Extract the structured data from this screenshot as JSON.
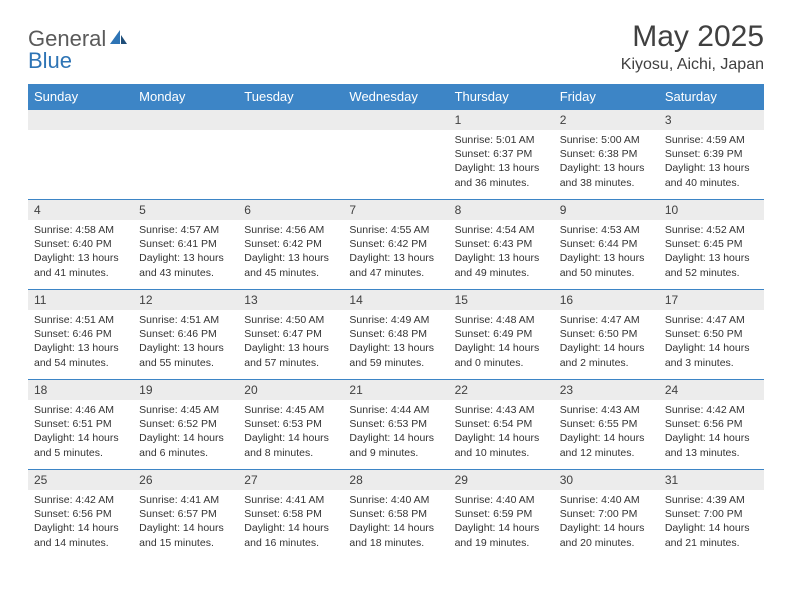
{
  "logo": {
    "text1": "General",
    "text2": "Blue"
  },
  "title": "May 2025",
  "location": "Kiyosu, Aichi, Japan",
  "headers": [
    "Sunday",
    "Monday",
    "Tuesday",
    "Wednesday",
    "Thursday",
    "Friday",
    "Saturday"
  ],
  "colors": {
    "header_bg": "#3d85c6",
    "header_fg": "#ffffff",
    "daynum_bg": "#ececec",
    "border": "#3d85c6",
    "title_color": "#404040",
    "logo_gray": "#5a5a5a",
    "logo_blue": "#2e74b5"
  },
  "weeks": [
    [
      {
        "n": "",
        "sr": "",
        "ss": "",
        "dl": ""
      },
      {
        "n": "",
        "sr": "",
        "ss": "",
        "dl": ""
      },
      {
        "n": "",
        "sr": "",
        "ss": "",
        "dl": ""
      },
      {
        "n": "",
        "sr": "",
        "ss": "",
        "dl": ""
      },
      {
        "n": "1",
        "sr": "Sunrise: 5:01 AM",
        "ss": "Sunset: 6:37 PM",
        "dl": "Daylight: 13 hours and 36 minutes."
      },
      {
        "n": "2",
        "sr": "Sunrise: 5:00 AM",
        "ss": "Sunset: 6:38 PM",
        "dl": "Daylight: 13 hours and 38 minutes."
      },
      {
        "n": "3",
        "sr": "Sunrise: 4:59 AM",
        "ss": "Sunset: 6:39 PM",
        "dl": "Daylight: 13 hours and 40 minutes."
      }
    ],
    [
      {
        "n": "4",
        "sr": "Sunrise: 4:58 AM",
        "ss": "Sunset: 6:40 PM",
        "dl": "Daylight: 13 hours and 41 minutes."
      },
      {
        "n": "5",
        "sr": "Sunrise: 4:57 AM",
        "ss": "Sunset: 6:41 PM",
        "dl": "Daylight: 13 hours and 43 minutes."
      },
      {
        "n": "6",
        "sr": "Sunrise: 4:56 AM",
        "ss": "Sunset: 6:42 PM",
        "dl": "Daylight: 13 hours and 45 minutes."
      },
      {
        "n": "7",
        "sr": "Sunrise: 4:55 AM",
        "ss": "Sunset: 6:42 PM",
        "dl": "Daylight: 13 hours and 47 minutes."
      },
      {
        "n": "8",
        "sr": "Sunrise: 4:54 AM",
        "ss": "Sunset: 6:43 PM",
        "dl": "Daylight: 13 hours and 49 minutes."
      },
      {
        "n": "9",
        "sr": "Sunrise: 4:53 AM",
        "ss": "Sunset: 6:44 PM",
        "dl": "Daylight: 13 hours and 50 minutes."
      },
      {
        "n": "10",
        "sr": "Sunrise: 4:52 AM",
        "ss": "Sunset: 6:45 PM",
        "dl": "Daylight: 13 hours and 52 minutes."
      }
    ],
    [
      {
        "n": "11",
        "sr": "Sunrise: 4:51 AM",
        "ss": "Sunset: 6:46 PM",
        "dl": "Daylight: 13 hours and 54 minutes."
      },
      {
        "n": "12",
        "sr": "Sunrise: 4:51 AM",
        "ss": "Sunset: 6:46 PM",
        "dl": "Daylight: 13 hours and 55 minutes."
      },
      {
        "n": "13",
        "sr": "Sunrise: 4:50 AM",
        "ss": "Sunset: 6:47 PM",
        "dl": "Daylight: 13 hours and 57 minutes."
      },
      {
        "n": "14",
        "sr": "Sunrise: 4:49 AM",
        "ss": "Sunset: 6:48 PM",
        "dl": "Daylight: 13 hours and 59 minutes."
      },
      {
        "n": "15",
        "sr": "Sunrise: 4:48 AM",
        "ss": "Sunset: 6:49 PM",
        "dl": "Daylight: 14 hours and 0 minutes."
      },
      {
        "n": "16",
        "sr": "Sunrise: 4:47 AM",
        "ss": "Sunset: 6:50 PM",
        "dl": "Daylight: 14 hours and 2 minutes."
      },
      {
        "n": "17",
        "sr": "Sunrise: 4:47 AM",
        "ss": "Sunset: 6:50 PM",
        "dl": "Daylight: 14 hours and 3 minutes."
      }
    ],
    [
      {
        "n": "18",
        "sr": "Sunrise: 4:46 AM",
        "ss": "Sunset: 6:51 PM",
        "dl": "Daylight: 14 hours and 5 minutes."
      },
      {
        "n": "19",
        "sr": "Sunrise: 4:45 AM",
        "ss": "Sunset: 6:52 PM",
        "dl": "Daylight: 14 hours and 6 minutes."
      },
      {
        "n": "20",
        "sr": "Sunrise: 4:45 AM",
        "ss": "Sunset: 6:53 PM",
        "dl": "Daylight: 14 hours and 8 minutes."
      },
      {
        "n": "21",
        "sr": "Sunrise: 4:44 AM",
        "ss": "Sunset: 6:53 PM",
        "dl": "Daylight: 14 hours and 9 minutes."
      },
      {
        "n": "22",
        "sr": "Sunrise: 4:43 AM",
        "ss": "Sunset: 6:54 PM",
        "dl": "Daylight: 14 hours and 10 minutes."
      },
      {
        "n": "23",
        "sr": "Sunrise: 4:43 AM",
        "ss": "Sunset: 6:55 PM",
        "dl": "Daylight: 14 hours and 12 minutes."
      },
      {
        "n": "24",
        "sr": "Sunrise: 4:42 AM",
        "ss": "Sunset: 6:56 PM",
        "dl": "Daylight: 14 hours and 13 minutes."
      }
    ],
    [
      {
        "n": "25",
        "sr": "Sunrise: 4:42 AM",
        "ss": "Sunset: 6:56 PM",
        "dl": "Daylight: 14 hours and 14 minutes."
      },
      {
        "n": "26",
        "sr": "Sunrise: 4:41 AM",
        "ss": "Sunset: 6:57 PM",
        "dl": "Daylight: 14 hours and 15 minutes."
      },
      {
        "n": "27",
        "sr": "Sunrise: 4:41 AM",
        "ss": "Sunset: 6:58 PM",
        "dl": "Daylight: 14 hours and 16 minutes."
      },
      {
        "n": "28",
        "sr": "Sunrise: 4:40 AM",
        "ss": "Sunset: 6:58 PM",
        "dl": "Daylight: 14 hours and 18 minutes."
      },
      {
        "n": "29",
        "sr": "Sunrise: 4:40 AM",
        "ss": "Sunset: 6:59 PM",
        "dl": "Daylight: 14 hours and 19 minutes."
      },
      {
        "n": "30",
        "sr": "Sunrise: 4:40 AM",
        "ss": "Sunset: 7:00 PM",
        "dl": "Daylight: 14 hours and 20 minutes."
      },
      {
        "n": "31",
        "sr": "Sunrise: 4:39 AM",
        "ss": "Sunset: 7:00 PM",
        "dl": "Daylight: 14 hours and 21 minutes."
      }
    ]
  ]
}
